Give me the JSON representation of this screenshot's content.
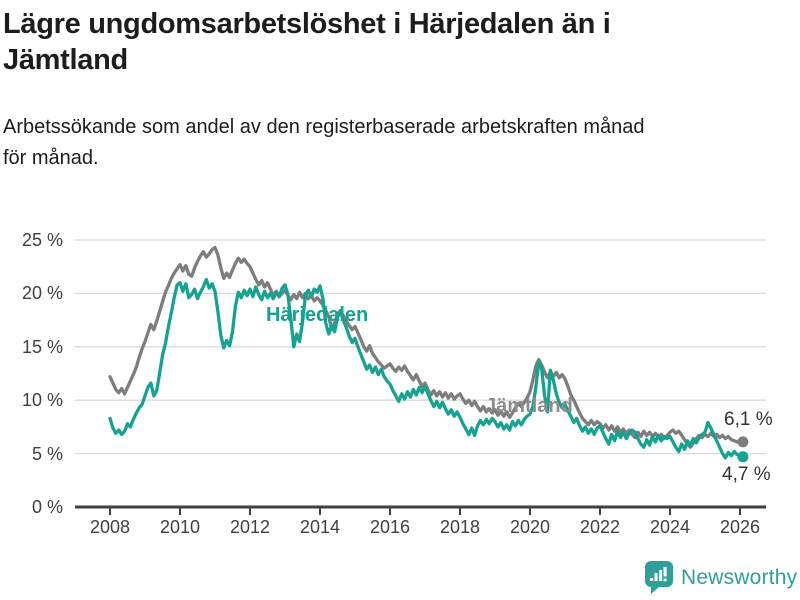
{
  "title": {
    "line1": "Lägre ungdomsarbetslöshet i Härjedalen än i",
    "line2": "Jämtland"
  },
  "subtitle": {
    "line1": "Arbetssökande som andel av den registerbaserade arbetskraften månad",
    "line2": "för månad."
  },
  "branding": {
    "name": "Newsworthy",
    "color": "#2ba19a",
    "icon": "bar-chart-speech-bubble"
  },
  "colors": {
    "harjedalen": "#14a390",
    "jamtland": "#7d7d7d",
    "jamtland_label": "#8c8c8c",
    "grid": "#d9d9d9",
    "axis": "#404040",
    "text": "#1c1c1c"
  },
  "chart_data": {
    "type": "line",
    "title": "Lägre ungdomsarbetslöshet i Härjedalen än i Jämtland",
    "subtitle": "Arbetssökande som andel av den registerbaserade arbetskraften månad för månad.",
    "x_unit": "month",
    "x_start": "2008-01",
    "x_end": "2026-02",
    "x_ticks": [
      2008,
      2010,
      2012,
      2014,
      2016,
      2018,
      2020,
      2022,
      2024,
      2026
    ],
    "ylim": [
      0,
      25
    ],
    "y_ticks": [
      {
        "label": "25 %",
        "value": 25
      },
      {
        "label": "20 %",
        "value": 20
      },
      {
        "label": "15 %",
        "value": 15
      },
      {
        "label": "10 %",
        "value": 10
      },
      {
        "label": "5 %",
        "value": 5
      },
      {
        "label": "0 %",
        "value": 0
      }
    ],
    "grid": "horizontal",
    "legend": "inline-labels",
    "series": [
      {
        "name": "Jämtland",
        "color": "#7d7d7d",
        "end_label": "6,1 %",
        "end_value": 6.1,
        "values": [
          12.2,
          11.6,
          11.0,
          10.7,
          11.1,
          10.6,
          11.2,
          11.8,
          12.4,
          13.1,
          14.0,
          14.8,
          15.5,
          16.3,
          17.1,
          16.6,
          17.4,
          18.3,
          19.2,
          20.1,
          20.7,
          21.4,
          21.9,
          22.3,
          22.7,
          22.1,
          22.6,
          21.8,
          21.6,
          22.4,
          23.0,
          23.5,
          23.9,
          23.4,
          23.7,
          24.1,
          24.3,
          23.6,
          22.4,
          21.4,
          21.9,
          21.5,
          22.2,
          22.8,
          23.3,
          22.9,
          23.2,
          22.8,
          22.5,
          21.9,
          21.3,
          20.8,
          21.2,
          20.6,
          21.0,
          20.4,
          19.8,
          20.2,
          19.7,
          20.0,
          20.3,
          19.8,
          19.4,
          19.9,
          19.5,
          20.1,
          19.6,
          20.0,
          19.5,
          19.8,
          19.3,
          19.6,
          19.3,
          18.9,
          18.4,
          17.8,
          16.6,
          17.2,
          18.0,
          18.4,
          17.9,
          17.4,
          17.0,
          16.6,
          16.9,
          16.3,
          15.7,
          15.0,
          14.6,
          15.1,
          14.4,
          14.0,
          13.6,
          13.3,
          13.0,
          13.2,
          13.4,
          13.0,
          12.7,
          13.1,
          12.8,
          13.2,
          12.7,
          12.3,
          11.9,
          12.4,
          11.8,
          11.3,
          11.6,
          11.0,
          10.5,
          10.9,
          10.4,
          10.8,
          10.3,
          10.7,
          10.2,
          10.6,
          10.1,
          10.4,
          10.6,
          10.1,
          9.7,
          10.0,
          9.5,
          9.9,
          9.4,
          9.0,
          9.4,
          8.9,
          9.2,
          8.8,
          9.1,
          8.6,
          9.0,
          8.5,
          8.9,
          8.4,
          8.8,
          9.3,
          9.7,
          9.4,
          9.8,
          10.2,
          10.8,
          11.9,
          13.2,
          13.8,
          13.3,
          12.6,
          12.1,
          12.7,
          12.2,
          12.6,
          12.1,
          12.4,
          12.0,
          11.3,
          10.5,
          10.0,
          9.4,
          8.8,
          8.3,
          8.0,
          7.7,
          8.1,
          7.7,
          8.0,
          7.8,
          7.4,
          7.7,
          7.2,
          7.6,
          7.1,
          7.5,
          7.0,
          7.3,
          6.9,
          7.2,
          6.8,
          6.5,
          7.0,
          6.6,
          7.1,
          6.7,
          7.0,
          6.6,
          6.9,
          6.5,
          6.8,
          6.4,
          6.7,
          7.0,
          7.2,
          6.9,
          7.1,
          6.7,
          6.3,
          5.9,
          5.6,
          6.0,
          6.4,
          6.7,
          6.5,
          6.8,
          6.6,
          6.9,
          6.6,
          6.8,
          6.5,
          6.7,
          6.4,
          6.6,
          6.3,
          6.2,
          6.1,
          6.2,
          6.1
        ]
      },
      {
        "name": "Härjedalen",
        "color": "#14a390",
        "end_label": "4,7 %",
        "end_value": 4.7,
        "values": [
          8.3,
          7.4,
          6.9,
          7.2,
          6.8,
          7.1,
          7.8,
          7.5,
          8.2,
          8.8,
          9.3,
          9.6,
          10.4,
          11.2,
          11.6,
          10.4,
          10.9,
          12.5,
          14.2,
          15.3,
          16.8,
          18.2,
          19.6,
          20.8,
          21.0,
          20.2,
          20.9,
          19.6,
          19.9,
          20.4,
          19.5,
          20.1,
          20.6,
          21.3,
          20.5,
          20.9,
          20.2,
          18.3,
          16.1,
          14.9,
          15.6,
          15.1,
          16.4,
          18.8,
          20.1,
          19.6,
          20.3,
          19.8,
          20.4,
          19.7,
          20.6,
          19.9,
          19.4,
          20.2,
          19.6,
          20.0,
          19.5,
          20.1,
          19.7,
          20.5,
          20.8,
          19.9,
          17.6,
          15.0,
          16.2,
          15.5,
          17.3,
          19.8,
          20.3,
          19.7,
          20.4,
          20.1,
          20.7,
          19.5,
          17.2,
          16.2,
          17.0,
          16.4,
          17.8,
          18.3,
          17.5,
          16.8,
          16.0,
          15.4,
          15.8,
          15.0,
          14.3,
          13.6,
          12.9,
          13.3,
          12.6,
          13.1,
          12.4,
          12.9,
          12.2,
          11.8,
          11.5,
          10.9,
          10.4,
          9.9,
          10.6,
          10.1,
          10.8,
          10.3,
          11.0,
          10.5,
          11.2,
          10.7,
          11.3,
          10.6,
          10.0,
          9.4,
          9.9,
          9.3,
          9.8,
          9.2,
          8.7,
          9.1,
          8.5,
          8.9,
          8.4,
          7.8,
          7.3,
          6.8,
          7.4,
          6.7,
          7.6,
          8.1,
          7.7,
          8.2,
          7.8,
          8.3,
          8.0,
          7.5,
          7.9,
          7.3,
          7.7,
          7.2,
          8.0,
          7.6,
          8.1,
          7.7,
          8.2,
          8.5,
          8.7,
          9.4,
          11.2,
          13.6,
          12.9,
          10.4,
          8.9,
          12.8,
          11.9,
          10.6,
          9.8,
          9.3,
          9.6,
          9.0,
          8.5,
          7.9,
          8.3,
          7.6,
          7.1,
          7.5,
          6.9,
          7.3,
          6.8,
          7.4,
          7.6,
          7.0,
          6.4,
          5.9,
          6.8,
          6.2,
          7.1,
          6.5,
          7.0,
          6.4,
          6.9,
          7.2,
          7.0,
          6.4,
          5.9,
          5.6,
          6.3,
          5.8,
          6.6,
          6.1,
          6.7,
          6.2,
          6.6,
          6.4,
          6.6,
          6.1,
          5.6,
          5.2,
          5.9,
          5.4,
          6.2,
          5.8,
          6.4,
          6.0,
          6.5,
          6.8,
          7.0,
          7.9,
          7.4,
          6.8,
          6.2,
          5.6,
          5.0,
          4.6,
          5.1,
          4.8,
          5.2,
          4.9,
          4.9,
          4.7
        ]
      }
    ]
  }
}
